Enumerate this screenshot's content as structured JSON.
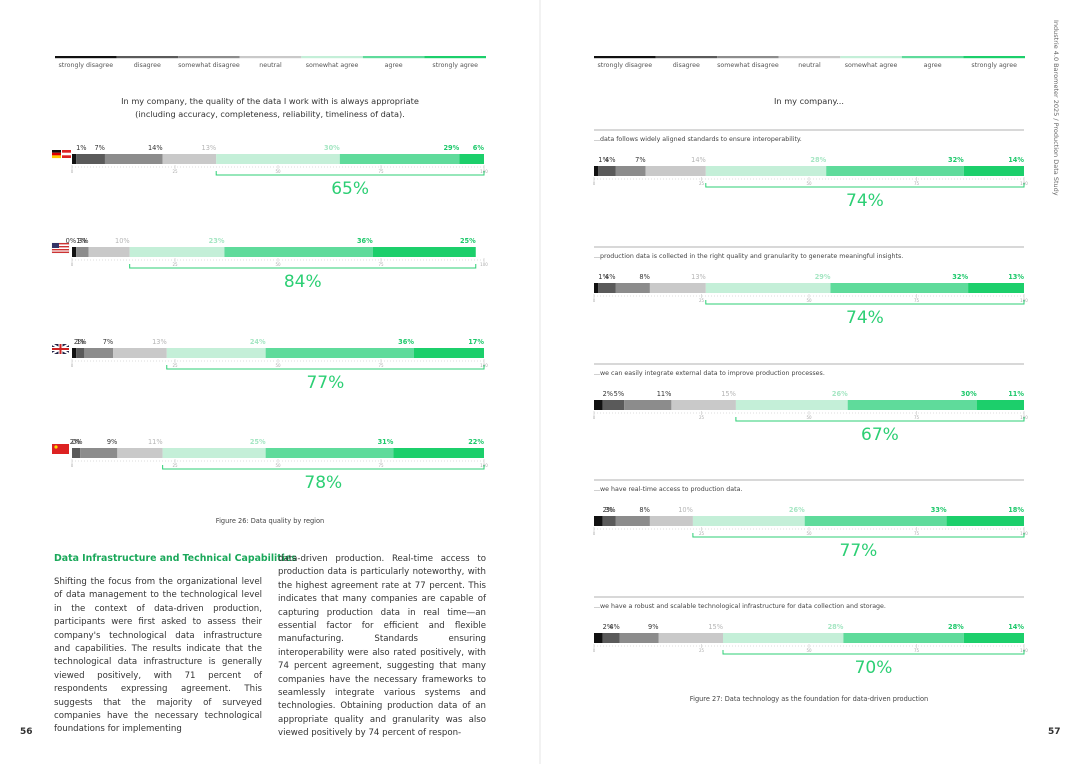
{
  "colors": [
    "#111111",
    "#5a5a5a",
    "#8c8c8c",
    "#c9c9c9",
    "#c4efd8",
    "#5fdb9b",
    "#1ccf6b"
  ],
  "left_page": {
    "legend": [
      "strongly disagree",
      "disagree",
      "somewhat disagree",
      "neutral",
      "somewhat agree",
      "agree",
      "strongly agree"
    ],
    "figure": {
      "title_lines": [
        "In my company, the quality of the data I work with is always appropriate",
        "(including accuracy, completeness, reliability, timeliness of data)."
      ],
      "axis_ticks": [
        0,
        25,
        50,
        75,
        100
      ],
      "rows": [
        {
          "values": [
            1,
            7,
            14,
            13,
            30,
            29,
            6
          ],
          "value_labels": [
            "1%",
            "7%",
            "14%",
            "13%",
            "30%",
            "29%",
            "6%"
          ],
          "total": 65,
          "total_label": "65%"
        },
        {
          "values": [
            1,
            0,
            3,
            10,
            23,
            36,
            25
          ],
          "value_labels": [
            "1%",
            "0%",
            "3%",
            "10%",
            "23%",
            "36%",
            "25%"
          ],
          "total": 84,
          "total_label": "84%"
        },
        {
          "values": [
            1,
            2,
            7,
            13,
            24,
            36,
            17
          ],
          "value_labels": [
            "1%",
            "2%",
            "7%",
            "13%",
            "24%",
            "36%",
            "17%"
          ],
          "total": 77,
          "total_label": "77%"
        },
        {
          "values": [
            0,
            2,
            9,
            11,
            25,
            31,
            22
          ],
          "value_labels": [
            "0%",
            "2%",
            "9%",
            "11%",
            "25%",
            "31%",
            "22%"
          ],
          "total": 78,
          "total_label": "78%"
        }
      ],
      "caption": "Figure 26: Data quality by region"
    },
    "section": {
      "heading": "Data Infrastructure and Technical Capabilities",
      "columns": [
        "Shifting the focus from the organizational level of data management to the technological level in the context of data-driven production, participants were first asked to assess their company's technological data infrastructure and capabilities. The results indicate that the technological data infrastructure is generally viewed positively, with 71 percent of respondents expressing agreement. This suggests that the majority of surveyed companies have the necessary technological foundations for implementing",
        "data-driven production. Real-time access to production data is particularly noteworthy, with the highest agreement rate at 77 percent. This indicates that many companies are capable of capturing production data in real time—an essential factor for efficient and flexible manufacturing. Standards ensuring interoperability were also rated positively, with 74 percent agreement, suggesting that many companies have the necessary frameworks to seamlessly integrate various systems and technologies. Obtaining production data of an appropriate quality and granularity was also viewed positively by 74 percent of respon-"
      ]
    },
    "page_number": "56"
  },
  "right_page": {
    "side_text": "Industrie 4.0 Barometer 2025 / Production Data Study",
    "legend": [
      "strongly disagree",
      "disagree",
      "somewhat disagree",
      "neutral",
      "somewhat agree",
      "agree",
      "strongly agree"
    ],
    "figure": {
      "title_lines": [
        "In my company..."
      ],
      "axis_ticks": [
        0,
        25,
        50,
        75,
        100
      ],
      "rows": [
        {
          "question": "...data follows widely aligned standards to ensure interoperability.",
          "values": [
            1,
            4,
            7,
            14,
            28,
            32,
            14
          ],
          "value_labels": [
            "1%",
            "4%",
            "7%",
            "14%",
            "28%",
            "32%",
            "14%"
          ],
          "total": 74,
          "total_label": "74%"
        },
        {
          "question": "...production data is collected in the right quality and granularity to generate meaningful insights.",
          "values": [
            1,
            4,
            8,
            13,
            29,
            32,
            13
          ],
          "value_labels": [
            "1%",
            "4%",
            "8%",
            "13%",
            "29%",
            "32%",
            "13%"
          ],
          "total": 74,
          "total_label": "74%"
        },
        {
          "question": "...we can easily integrate external data to improve production processes.",
          "values": [
            2,
            5,
            11,
            15,
            26,
            30,
            11
          ],
          "value_labels": [
            "2%",
            "5%",
            "11%",
            "15%",
            "26%",
            "30%",
            "11%"
          ],
          "total": 67,
          "total_label": "67%"
        },
        {
          "question": "...we have real-time access to production data.",
          "values": [
            2,
            3,
            8,
            10,
            26,
            33,
            18
          ],
          "value_labels": [
            "2%",
            "3%",
            "8%",
            "10%",
            "26%",
            "33%",
            "18%"
          ],
          "total": 77,
          "total_label": "77%"
        },
        {
          "question": "...we have a robust and scalable technological infrastructure for data collection and storage.",
          "values": [
            2,
            4,
            9,
            15,
            28,
            28,
            14
          ],
          "value_labels": [
            "2%",
            "4%",
            "9%",
            "15%",
            "28%",
            "28%",
            "14%"
          ],
          "total": 70,
          "total_label": "70%"
        }
      ],
      "caption": "Figure 27: Data technology as the foundation for data-driven production"
    },
    "page_number": "57"
  }
}
